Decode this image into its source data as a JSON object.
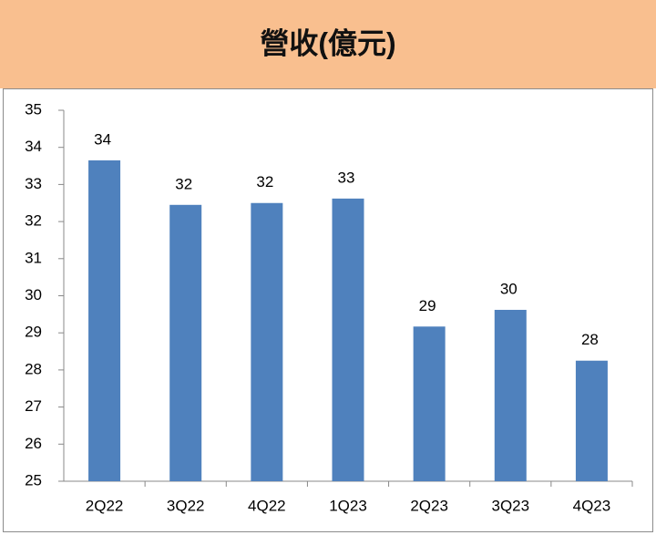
{
  "chart_data": {
    "type": "bar",
    "title": "營收(億元)",
    "categories": [
      "2Q22",
      "3Q22",
      "4Q22",
      "1Q23",
      "2Q23",
      "3Q23",
      "4Q23"
    ],
    "values": [
      33.65,
      32.45,
      32.5,
      32.62,
      29.17,
      29.62,
      28.25
    ],
    "value_labels": [
      "34",
      "32",
      "32",
      "33",
      "29",
      "30",
      "28"
    ],
    "color": "#4f81bd",
    "ylim": [
      25,
      35
    ],
    "yticks": [
      25,
      26,
      27,
      28,
      29,
      30,
      31,
      32,
      33,
      34,
      35
    ],
    "grid": false
  }
}
